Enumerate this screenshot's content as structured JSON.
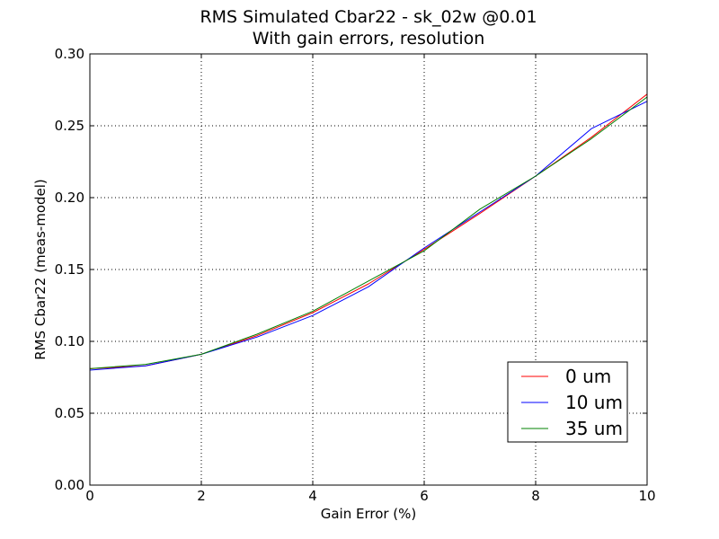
{
  "chart_data": {
    "type": "line",
    "title": "RMS Simulated Cbar22 - sk_02w @0.01",
    "subtitle": "With gain errors, resolution",
    "xlabel": "Gain Error (%)",
    "ylabel": "RMS Cbar22 (meas-model)",
    "xlim": [
      0,
      10
    ],
    "ylim": [
      0,
      0.3
    ],
    "xticks": [
      0,
      2,
      4,
      6,
      8,
      10
    ],
    "xtick_labels": [
      "0",
      "2",
      "4",
      "6",
      "8",
      "10"
    ],
    "yticks": [
      0.0,
      0.05,
      0.1,
      0.15,
      0.2,
      0.25,
      0.3
    ],
    "ytick_labels": [
      "0.00",
      "0.05",
      "0.10",
      "0.15",
      "0.20",
      "0.25",
      "0.30"
    ],
    "grid": true,
    "legend_position": "bottom-right",
    "x": [
      0,
      1,
      2,
      3,
      4,
      5,
      6,
      7,
      8,
      9,
      10
    ],
    "series": [
      {
        "name": "0 um",
        "color": "#ff0000",
        "values": [
          0.081,
          0.083,
          0.091,
          0.104,
          0.12,
          0.14,
          0.164,
          0.189,
          0.215,
          0.242,
          0.272
        ]
      },
      {
        "name": "10 um",
        "color": "#0000ff",
        "values": [
          0.08,
          0.083,
          0.091,
          0.103,
          0.118,
          0.138,
          0.165,
          0.19,
          0.215,
          0.248,
          0.267
        ]
      },
      {
        "name": "35 um",
        "color": "#008000",
        "values": [
          0.081,
          0.084,
          0.091,
          0.105,
          0.121,
          0.142,
          0.163,
          0.192,
          0.215,
          0.241,
          0.27
        ]
      }
    ]
  }
}
